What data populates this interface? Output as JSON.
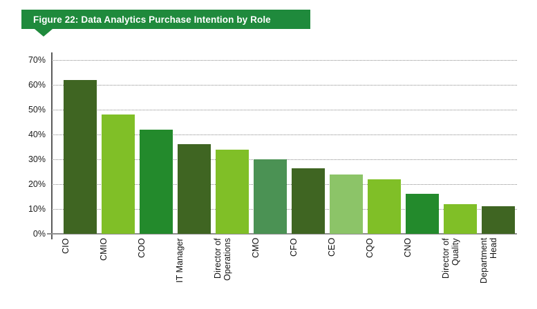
{
  "figure": {
    "title": "Figure 22: Data Analytics Purchase Intention by Role",
    "banner_color": "#1f8a3c",
    "banner_text_color": "#ffffff"
  },
  "chart_data": {
    "type": "bar",
    "title": "Figure 22: Data Analytics Purchase Intention by Role",
    "categories": [
      "CIO",
      "CMIO",
      "COO",
      "IT Manager",
      "Director of Operations",
      "CMO",
      "CFO",
      "CEO",
      "CQO",
      "CNO",
      "Director of Quality",
      "Department Head"
    ],
    "values": [
      62,
      48,
      42,
      36,
      34,
      30,
      26.5,
      24,
      22,
      16,
      12,
      11
    ],
    "bar_colors": [
      "#3f6522",
      "#80bf27",
      "#238a2c",
      "#3f6522",
      "#80bf27",
      "#4b9254",
      "#3f6522",
      "#8cc468",
      "#80bf27",
      "#238a2c",
      "#80bf27",
      "#3f6522"
    ],
    "value_unit": "%",
    "xlabel": "",
    "ylabel": "",
    "ylim": [
      0,
      70
    ],
    "ytick_labels": [
      "0%",
      "10%",
      "20%",
      "30%",
      "40%",
      "50%",
      "60%",
      "70%"
    ],
    "gridlines": "horizontal dotted",
    "legend": "none",
    "axis_color": "#5a5a5a",
    "grid_color": "#8a8a8a"
  }
}
